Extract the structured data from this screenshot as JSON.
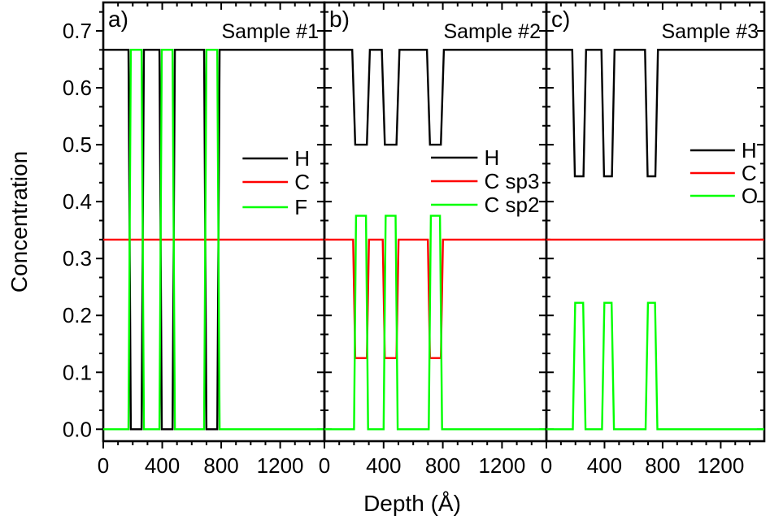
{
  "figure": {
    "x_axis_label": "Depth (Å)",
    "y_axis_label": "Concentration",
    "background_color": "#ffffff",
    "frame_color": "#000000",
    "text_color": "#000000"
  },
  "chart_data": [
    {
      "type": "line",
      "panel_label": "a)",
      "title": "Sample #1",
      "xlim": [
        0,
        1500
      ],
      "ylim": [
        -0.021,
        0.75
      ],
      "grid": false,
      "x_ticks": {
        "major": [
          0,
          400,
          800,
          1200
        ],
        "labels": [
          "0",
          "400",
          "800",
          "1200"
        ],
        "minor_step": 100
      },
      "y_ticks": {
        "major": [
          0.0,
          0.1,
          0.2,
          0.3,
          0.4,
          0.5,
          0.6,
          0.7
        ],
        "labels": [
          "0.0",
          "0.1",
          "0.2",
          "0.3",
          "0.4",
          "0.5",
          "0.6",
          "0.7"
        ],
        "minor_per_major": 2,
        "show_labels": true
      },
      "legend_position": "center-right",
      "series": [
        {
          "name": "H",
          "color": "#000000",
          "points": [
            [
              0,
              0.6667
            ],
            [
              171,
              0.6667
            ],
            [
              187,
              0
            ],
            [
              260,
              0
            ],
            [
              276,
              0.6667
            ],
            [
              381,
              0.6667
            ],
            [
              397,
              0
            ],
            [
              470,
              0
            ],
            [
              486,
              0.6667
            ],
            [
              684,
              0.6667
            ],
            [
              700,
              0
            ],
            [
              773,
              0
            ],
            [
              789,
              0.6667
            ],
            [
              1500,
              0.6667
            ]
          ]
        },
        {
          "name": "C",
          "color": "#ff0000",
          "points": [
            [
              0,
              0.3333
            ],
            [
              1500,
              0.3333
            ]
          ]
        },
        {
          "name": "F",
          "color": "#00ff00",
          "points": [
            [
              0,
              0
            ],
            [
              171,
              0
            ],
            [
              187,
              0.6667
            ],
            [
              260,
              0.6667
            ],
            [
              276,
              0
            ],
            [
              381,
              0
            ],
            [
              397,
              0.6667
            ],
            [
              470,
              0.6667
            ],
            [
              486,
              0
            ],
            [
              684,
              0
            ],
            [
              700,
              0.6667
            ],
            [
              773,
              0.6667
            ],
            [
              789,
              0
            ],
            [
              1500,
              0
            ]
          ]
        }
      ]
    },
    {
      "type": "line",
      "panel_label": "b)",
      "title": "Sample #2",
      "xlim": [
        0,
        1500
      ],
      "ylim": [
        -0.021,
        0.75
      ],
      "grid": false,
      "x_ticks": {
        "major": [
          0,
          400,
          800,
          1200
        ],
        "labels": [
          "0",
          "400",
          "800",
          "1200"
        ],
        "minor_step": 100
      },
      "y_ticks": {
        "major": [
          0.0,
          0.1,
          0.2,
          0.3,
          0.4,
          0.5,
          0.6,
          0.7
        ],
        "labels": [
          "0.0",
          "0.1",
          "0.2",
          "0.3",
          "0.4",
          "0.5",
          "0.6",
          "0.7"
        ],
        "minor_per_major": 2,
        "show_labels": false
      },
      "legend_position": "center-right",
      "series": [
        {
          "name": "H",
          "color": "#000000",
          "points": [
            [
              0,
              0.6667
            ],
            [
              188,
              0.6667
            ],
            [
              208,
              0.5
            ],
            [
              287,
              0.5
            ],
            [
              307,
              0.6667
            ],
            [
              388,
              0.6667
            ],
            [
              408,
              0.5
            ],
            [
              487,
              0.5
            ],
            [
              507,
              0.6667
            ],
            [
              693,
              0.6667
            ],
            [
              713,
              0.5
            ],
            [
              787,
              0.5
            ],
            [
              807,
              0.6667
            ],
            [
              1500,
              0.6667
            ]
          ]
        },
        {
          "name": "C sp3",
          "color": "#ff0000",
          "points": [
            [
              0,
              0.3333
            ],
            [
              194,
              0.3333
            ],
            [
              208,
              0.125
            ],
            [
              287,
              0.125
            ],
            [
              301,
              0.3333
            ],
            [
              394,
              0.3333
            ],
            [
              408,
              0.125
            ],
            [
              487,
              0.125
            ],
            [
              501,
              0.3333
            ],
            [
              699,
              0.3333
            ],
            [
              713,
              0.125
            ],
            [
              787,
              0.125
            ],
            [
              801,
              0.3333
            ],
            [
              1500,
              0.3333
            ]
          ]
        },
        {
          "name": "C sp2",
          "color": "#00ff00",
          "points": [
            [
              0,
              0
            ],
            [
              200,
              0
            ],
            [
              214,
              0.375
            ],
            [
              281,
              0.375
            ],
            [
              295,
              0
            ],
            [
              400,
              0
            ],
            [
              414,
              0.375
            ],
            [
              481,
              0.375
            ],
            [
              495,
              0
            ],
            [
              705,
              0
            ],
            [
              719,
              0.375
            ],
            [
              781,
              0.375
            ],
            [
              795,
              0
            ],
            [
              1500,
              0
            ]
          ]
        }
      ]
    },
    {
      "type": "line",
      "panel_label": "c)",
      "title": "Sample #3",
      "xlim": [
        0,
        1500
      ],
      "ylim": [
        -0.021,
        0.75
      ],
      "grid": false,
      "x_ticks": {
        "major": [
          0,
          400,
          800,
          1200
        ],
        "labels": [
          "0",
          "400",
          "800",
          "1200"
        ],
        "minor_step": 100
      },
      "y_ticks": {
        "major": [
          0.0,
          0.1,
          0.2,
          0.3,
          0.4,
          0.5,
          0.6,
          0.7
        ],
        "labels": [
          "0.0",
          "0.1",
          "0.2",
          "0.3",
          "0.4",
          "0.5",
          "0.6",
          "0.7"
        ],
        "minor_per_major": 2,
        "show_labels": false
      },
      "legend_position": "center-right",
      "series": [
        {
          "name": "H",
          "color": "#000000",
          "points": [
            [
              0,
              0.6667
            ],
            [
              178,
              0.6667
            ],
            [
              196,
              0.4444
            ],
            [
              255,
              0.4444
            ],
            [
              273,
              0.6667
            ],
            [
              379,
              0.6667
            ],
            [
              397,
              0.4444
            ],
            [
              451,
              0.4444
            ],
            [
              469,
              0.6667
            ],
            [
              679,
              0.6667
            ],
            [
              697,
              0.4444
            ],
            [
              750,
              0.4444
            ],
            [
              768,
              0.6667
            ],
            [
              1500,
              0.6667
            ]
          ]
        },
        {
          "name": "C",
          "color": "#ff0000",
          "points": [
            [
              0,
              0.3333
            ],
            [
              1500,
              0.3333
            ]
          ]
        },
        {
          "name": "O",
          "color": "#00ff00",
          "points": [
            [
              0,
              0
            ],
            [
              182,
              0
            ],
            [
              198,
              0.2222
            ],
            [
              253,
              0.2222
            ],
            [
              269,
              0
            ],
            [
              383,
              0
            ],
            [
              399,
              0.2222
            ],
            [
              449,
              0.2222
            ],
            [
              465,
              0
            ],
            [
              683,
              0
            ],
            [
              699,
              0.2222
            ],
            [
              748,
              0.2222
            ],
            [
              764,
              0
            ],
            [
              1500,
              0
            ]
          ]
        }
      ]
    }
  ]
}
